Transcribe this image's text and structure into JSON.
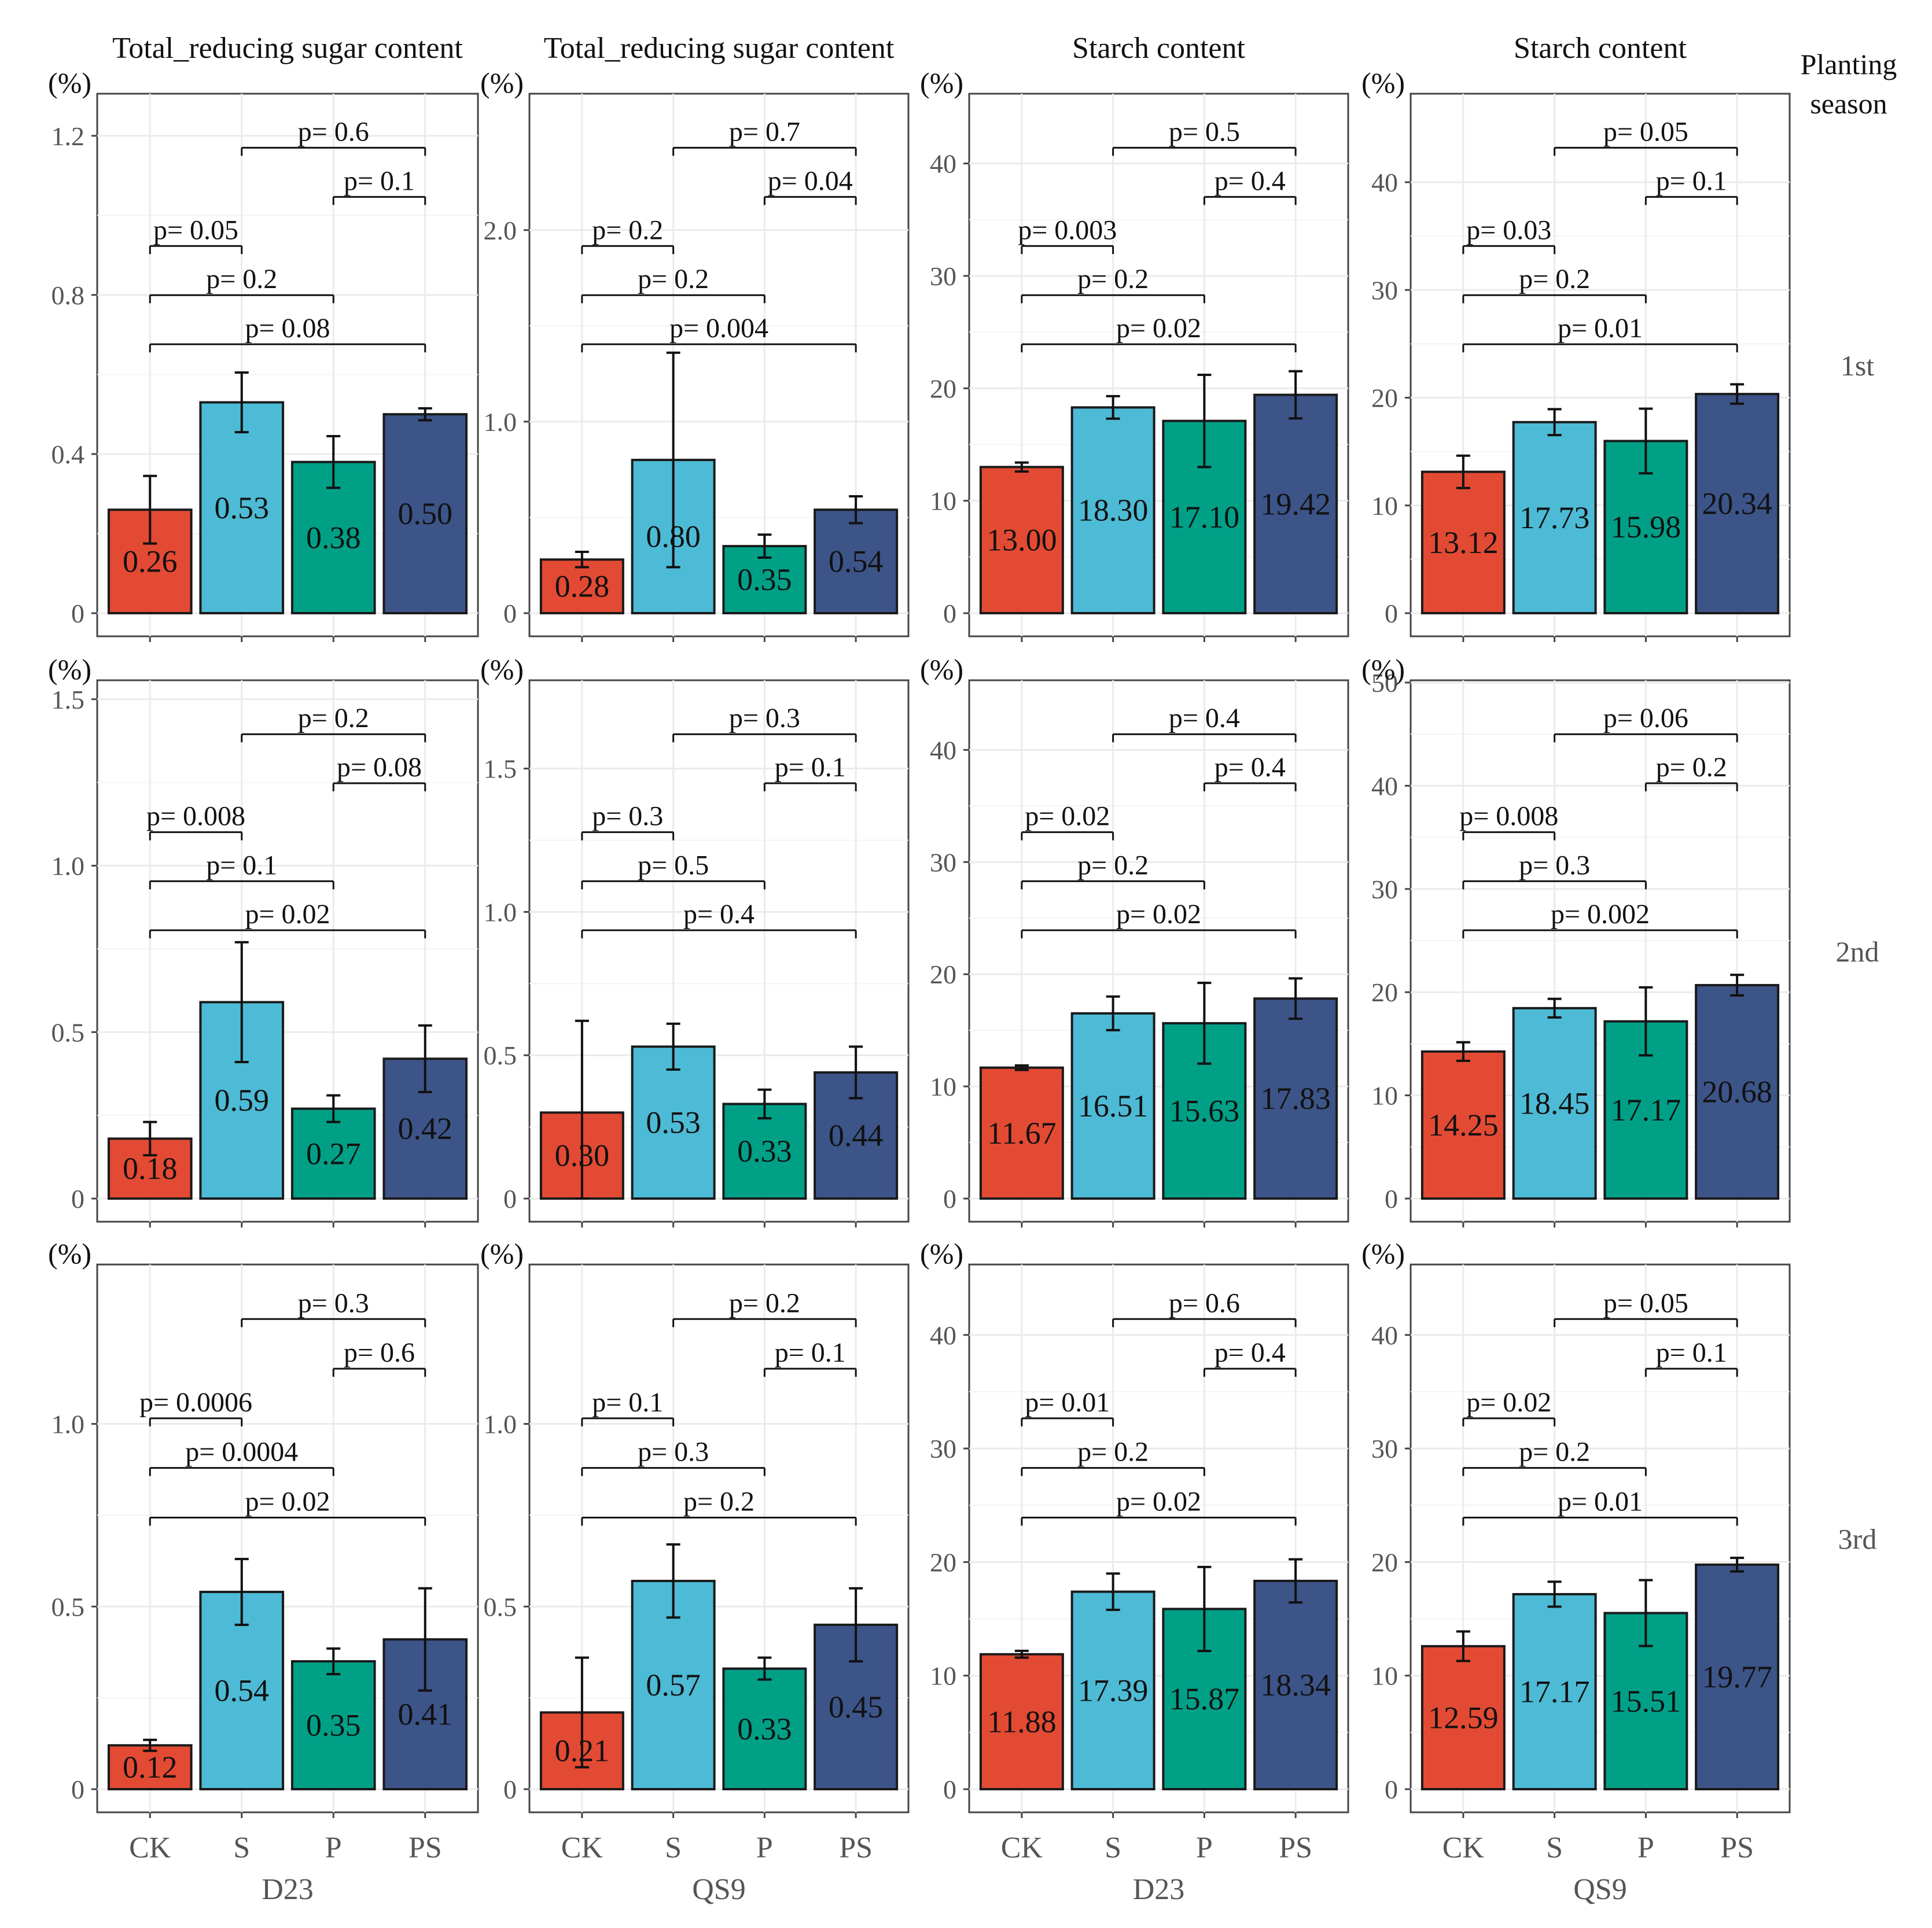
{
  "figure": {
    "y_unit_label": "(%)",
    "column_titles": [
      "Total_reducing sugar content",
      "Total_reducing sugar content",
      "Starch content",
      "Starch content"
    ],
    "column_cultivars": [
      "D23",
      "QS9",
      "D23",
      "QS9"
    ],
    "row_strip_title": "Planting season",
    "row_labels": [
      "1st",
      "2nd",
      "3rd"
    ],
    "treatments": [
      "CK",
      "S",
      "P",
      "PS"
    ],
    "p_prefix": "p= ",
    "colors": {
      "CK": "#E34A33",
      "S": "#4DBBD5",
      "P": "#00A087",
      "PS": "#3C5488"
    }
  },
  "chart_data": [
    {
      "type": "bar",
      "season": "1st",
      "cultivar": "D23",
      "title": "Total_reducing sugar content",
      "ylabel": "(%)",
      "categories": [
        "CK",
        "S",
        "P",
        "PS"
      ],
      "values": [
        0.26,
        0.53,
        0.38,
        0.5
      ],
      "value_labels": [
        "0.26",
        "0.53",
        "0.38",
        "0.50"
      ],
      "errors": [
        0.085,
        0.075,
        0.065,
        0.015
      ],
      "ylim": [
        0,
        1.3
      ],
      "yticks": [
        0,
        0.4,
        0.8,
        1.2
      ],
      "ytick_labels": [
        "0",
        "0.4",
        "0.8",
        "1.2"
      ],
      "comparisons": [
        {
          "pair": [
            "S",
            "PS"
          ],
          "p": "0.6"
        },
        {
          "pair": [
            "P",
            "PS"
          ],
          "p": "0.1"
        },
        {
          "pair": [
            "CK",
            "S"
          ],
          "p": "0.05"
        },
        {
          "pair": [
            "CK",
            "P"
          ],
          "p": "0.2"
        },
        {
          "pair": [
            "CK",
            "PS"
          ],
          "p": "0.08"
        }
      ]
    },
    {
      "type": "bar",
      "season": "1st",
      "cultivar": "QS9",
      "title": "Total_reducing sugar content",
      "ylabel": "(%)",
      "categories": [
        "CK",
        "S",
        "P",
        "PS"
      ],
      "values": [
        0.28,
        0.8,
        0.35,
        0.54
      ],
      "value_labels": [
        "0.28",
        "0.80",
        "0.35",
        "0.54"
      ],
      "errors": [
        0.04,
        0.56,
        0.06,
        0.07
      ],
      "ylim": [
        0,
        2.7
      ],
      "yticks": [
        0,
        1.0,
        2.0
      ],
      "ytick_labels": [
        "0",
        "1.0",
        "2.0"
      ],
      "comparisons": [
        {
          "pair": [
            "S",
            "PS"
          ],
          "p": "0.7"
        },
        {
          "pair": [
            "P",
            "PS"
          ],
          "p": "0.04"
        },
        {
          "pair": [
            "CK",
            "S"
          ],
          "p": "0.2"
        },
        {
          "pair": [
            "CK",
            "P"
          ],
          "p": "0.2"
        },
        {
          "pair": [
            "CK",
            "PS"
          ],
          "p": "0.004"
        }
      ]
    },
    {
      "type": "bar",
      "season": "1st",
      "cultivar": "D23",
      "title": "Starch content",
      "ylabel": "(%)",
      "categories": [
        "CK",
        "S",
        "P",
        "PS"
      ],
      "values": [
        13.0,
        18.3,
        17.1,
        19.42
      ],
      "value_labels": [
        "13.00",
        "18.30",
        "17.10",
        "19.42"
      ],
      "errors": [
        0.4,
        1.0,
        4.1,
        2.1
      ],
      "ylim": [
        0,
        46
      ],
      "yticks": [
        0,
        10,
        20,
        30,
        40
      ],
      "ytick_labels": [
        "0",
        "10",
        "20",
        "30",
        "40"
      ],
      "comparisons": [
        {
          "pair": [
            "S",
            "PS"
          ],
          "p": "0.5"
        },
        {
          "pair": [
            "P",
            "PS"
          ],
          "p": "0.4"
        },
        {
          "pair": [
            "CK",
            "S"
          ],
          "p": "0.003"
        },
        {
          "pair": [
            "CK",
            "P"
          ],
          "p": "0.2"
        },
        {
          "pair": [
            "CK",
            "PS"
          ],
          "p": "0.02"
        }
      ]
    },
    {
      "type": "bar",
      "season": "1st",
      "cultivar": "QS9",
      "title": "Starch content",
      "ylabel": "(%)",
      "categories": [
        "CK",
        "S",
        "P",
        "PS"
      ],
      "values": [
        13.12,
        17.73,
        15.98,
        20.34
      ],
      "value_labels": [
        "13.12",
        "17.73",
        "15.98",
        "20.34"
      ],
      "errors": [
        1.5,
        1.2,
        3.0,
        0.9
      ],
      "ylim": [
        0,
        48
      ],
      "yticks": [
        0,
        10,
        20,
        30,
        40
      ],
      "ytick_labels": [
        "0",
        "10",
        "20",
        "30",
        "40"
      ],
      "comparisons": [
        {
          "pair": [
            "S",
            "PS"
          ],
          "p": "0.05"
        },
        {
          "pair": [
            "P",
            "PS"
          ],
          "p": "0.1"
        },
        {
          "pair": [
            "CK",
            "S"
          ],
          "p": "0.03"
        },
        {
          "pair": [
            "CK",
            "P"
          ],
          "p": "0.2"
        },
        {
          "pair": [
            "CK",
            "PS"
          ],
          "p": "0.01"
        }
      ]
    },
    {
      "type": "bar",
      "season": "2nd",
      "cultivar": "D23",
      "title": "Total_reducing sugar content",
      "ylabel": "(%)",
      "categories": [
        "CK",
        "S",
        "P",
        "PS"
      ],
      "values": [
        0.18,
        0.59,
        0.27,
        0.42
      ],
      "value_labels": [
        "0.18",
        "0.59",
        "0.27",
        "0.42"
      ],
      "errors": [
        0.05,
        0.18,
        0.04,
        0.1
      ],
      "ylim": [
        0,
        1.55
      ],
      "yticks": [
        0,
        0.5,
        1.0,
        1.5
      ],
      "ytick_labels": [
        "0",
        "0.5",
        "1.0",
        "1.5"
      ],
      "comparisons": [
        {
          "pair": [
            "S",
            "PS"
          ],
          "p": "0.2"
        },
        {
          "pair": [
            "P",
            "PS"
          ],
          "p": "0.08"
        },
        {
          "pair": [
            "CK",
            "S"
          ],
          "p": "0.008"
        },
        {
          "pair": [
            "CK",
            "P"
          ],
          "p": "0.1"
        },
        {
          "pair": [
            "CK",
            "PS"
          ],
          "p": "0.02"
        }
      ]
    },
    {
      "type": "bar",
      "season": "2nd",
      "cultivar": "QS9",
      "title": "Total_reducing sugar content",
      "ylabel": "(%)",
      "categories": [
        "CK",
        "S",
        "P",
        "PS"
      ],
      "values": [
        0.3,
        0.53,
        0.33,
        0.44
      ],
      "value_labels": [
        "0.30",
        "0.53",
        "0.33",
        "0.44"
      ],
      "errors": [
        0.32,
        0.08,
        0.05,
        0.09
      ],
      "ylim": [
        0,
        1.8
      ],
      "yticks": [
        0,
        0.5,
        1.0,
        1.5
      ],
      "ytick_labels": [
        "0",
        "0.5",
        "1.0",
        "1.5"
      ],
      "comparisons": [
        {
          "pair": [
            "S",
            "PS"
          ],
          "p": "0.3"
        },
        {
          "pair": [
            "P",
            "PS"
          ],
          "p": "0.1"
        },
        {
          "pair": [
            "CK",
            "S"
          ],
          "p": "0.3"
        },
        {
          "pair": [
            "CK",
            "P"
          ],
          "p": "0.5"
        },
        {
          "pair": [
            "CK",
            "PS"
          ],
          "p": "0.4"
        }
      ]
    },
    {
      "type": "bar",
      "season": "2nd",
      "cultivar": "D23",
      "title": "Starch content",
      "ylabel": "(%)",
      "categories": [
        "CK",
        "S",
        "P",
        "PS"
      ],
      "values": [
        11.67,
        16.51,
        15.63,
        17.83
      ],
      "value_labels": [
        "11.67",
        "16.51",
        "15.63",
        "17.83"
      ],
      "errors": [
        0.2,
        1.5,
        3.6,
        1.8
      ],
      "ylim": [
        0,
        46
      ],
      "yticks": [
        0,
        10,
        20,
        30,
        40
      ],
      "ytick_labels": [
        "0",
        "10",
        "20",
        "30",
        "40"
      ],
      "comparisons": [
        {
          "pair": [
            "S",
            "PS"
          ],
          "p": "0.4"
        },
        {
          "pair": [
            "P",
            "PS"
          ],
          "p": "0.4"
        },
        {
          "pair": [
            "CK",
            "S"
          ],
          "p": "0.02"
        },
        {
          "pair": [
            "CK",
            "P"
          ],
          "p": "0.2"
        },
        {
          "pair": [
            "CK",
            "PS"
          ],
          "p": "0.02"
        }
      ]
    },
    {
      "type": "bar",
      "season": "2nd",
      "cultivar": "QS9",
      "title": "Starch content",
      "ylabel": "(%)",
      "categories": [
        "CK",
        "S",
        "P",
        "PS"
      ],
      "values": [
        14.25,
        18.45,
        17.17,
        20.68
      ],
      "value_labels": [
        "14.25",
        "18.45",
        "17.17",
        "20.68"
      ],
      "errors": [
        0.9,
        0.9,
        3.3,
        1.0
      ],
      "ylim": [
        0,
        50
      ],
      "yticks": [
        0,
        10,
        20,
        30,
        40,
        50
      ],
      "ytick_labels": [
        "0",
        "10",
        "20",
        "30",
        "40",
        "50"
      ],
      "comparisons": [
        {
          "pair": [
            "S",
            "PS"
          ],
          "p": "0.06"
        },
        {
          "pair": [
            "P",
            "PS"
          ],
          "p": "0.2"
        },
        {
          "pair": [
            "CK",
            "S"
          ],
          "p": "0.008"
        },
        {
          "pair": [
            "CK",
            "P"
          ],
          "p": "0.3"
        },
        {
          "pair": [
            "CK",
            "PS"
          ],
          "p": "0.002"
        }
      ]
    },
    {
      "type": "bar",
      "season": "3rd",
      "cultivar": "D23",
      "title": "Total_reducing sugar content",
      "ylabel": "(%)",
      "categories": [
        "CK",
        "S",
        "P",
        "PS"
      ],
      "values": [
        0.12,
        0.54,
        0.35,
        0.41
      ],
      "value_labels": [
        "0.12",
        "0.54",
        "0.35",
        "0.41"
      ],
      "errors": [
        0.015,
        0.09,
        0.035,
        0.14
      ],
      "ylim": [
        0,
        1.43
      ],
      "yticks": [
        0,
        0.5,
        1.0
      ],
      "ytick_labels": [
        "0",
        "0.5",
        "1.0"
      ],
      "comparisons": [
        {
          "pair": [
            "S",
            "PS"
          ],
          "p": "0.3"
        },
        {
          "pair": [
            "P",
            "PS"
          ],
          "p": "0.6"
        },
        {
          "pair": [
            "CK",
            "S"
          ],
          "p": "0.0006"
        },
        {
          "pair": [
            "CK",
            "P"
          ],
          "p": "0.0004"
        },
        {
          "pair": [
            "CK",
            "PS"
          ],
          "p": "0.02"
        }
      ]
    },
    {
      "type": "bar",
      "season": "3rd",
      "cultivar": "QS9",
      "title": "Total_reducing sugar content",
      "ylabel": "(%)",
      "categories": [
        "CK",
        "S",
        "P",
        "PS"
      ],
      "values": [
        0.21,
        0.57,
        0.33,
        0.45
      ],
      "value_labels": [
        "0.21",
        "0.57",
        "0.33",
        "0.45"
      ],
      "errors": [
        0.15,
        0.1,
        0.03,
        0.1
      ],
      "ylim": [
        0,
        1.43
      ],
      "yticks": [
        0,
        0.5,
        1.0
      ],
      "ytick_labels": [
        "0",
        "0.5",
        "1.0"
      ],
      "comparisons": [
        {
          "pair": [
            "S",
            "PS"
          ],
          "p": "0.2"
        },
        {
          "pair": [
            "P",
            "PS"
          ],
          "p": "0.1"
        },
        {
          "pair": [
            "CK",
            "S"
          ],
          "p": "0.1"
        },
        {
          "pair": [
            "CK",
            "P"
          ],
          "p": "0.3"
        },
        {
          "pair": [
            "CK",
            "PS"
          ],
          "p": "0.2"
        }
      ]
    },
    {
      "type": "bar",
      "season": "3rd",
      "cultivar": "D23",
      "title": "Starch content",
      "ylabel": "(%)",
      "categories": [
        "CK",
        "S",
        "P",
        "PS"
      ],
      "values": [
        11.88,
        17.39,
        15.87,
        18.34
      ],
      "value_labels": [
        "11.88",
        "17.39",
        "15.87",
        "18.34"
      ],
      "errors": [
        0.3,
        1.6,
        3.7,
        1.9
      ],
      "ylim": [
        0,
        46
      ],
      "yticks": [
        0,
        10,
        20,
        30,
        40
      ],
      "ytick_labels": [
        "0",
        "10",
        "20",
        "30",
        "40"
      ],
      "comparisons": [
        {
          "pair": [
            "S",
            "PS"
          ],
          "p": "0.6"
        },
        {
          "pair": [
            "P",
            "PS"
          ],
          "p": "0.4"
        },
        {
          "pair": [
            "CK",
            "S"
          ],
          "p": "0.01"
        },
        {
          "pair": [
            "CK",
            "P"
          ],
          "p": "0.2"
        },
        {
          "pair": [
            "CK",
            "PS"
          ],
          "p": "0.02"
        }
      ]
    },
    {
      "type": "bar",
      "season": "3rd",
      "cultivar": "QS9",
      "title": "Starch content",
      "ylabel": "(%)",
      "categories": [
        "CK",
        "S",
        "P",
        "PS"
      ],
      "values": [
        12.59,
        17.17,
        15.51,
        19.77
      ],
      "value_labels": [
        "12.59",
        "17.17",
        "15.51",
        "19.77"
      ],
      "errors": [
        1.3,
        1.1,
        2.9,
        0.6
      ],
      "ylim": [
        0,
        46
      ],
      "yticks": [
        0,
        10,
        20,
        30,
        40
      ],
      "ytick_labels": [
        "0",
        "10",
        "20",
        "30",
        "40"
      ],
      "comparisons": [
        {
          "pair": [
            "S",
            "PS"
          ],
          "p": "0.05"
        },
        {
          "pair": [
            "P",
            "PS"
          ],
          "p": "0.1"
        },
        {
          "pair": [
            "CK",
            "S"
          ],
          "p": "0.02"
        },
        {
          "pair": [
            "CK",
            "P"
          ],
          "p": "0.2"
        },
        {
          "pair": [
            "CK",
            "PS"
          ],
          "p": "0.01"
        }
      ]
    }
  ]
}
